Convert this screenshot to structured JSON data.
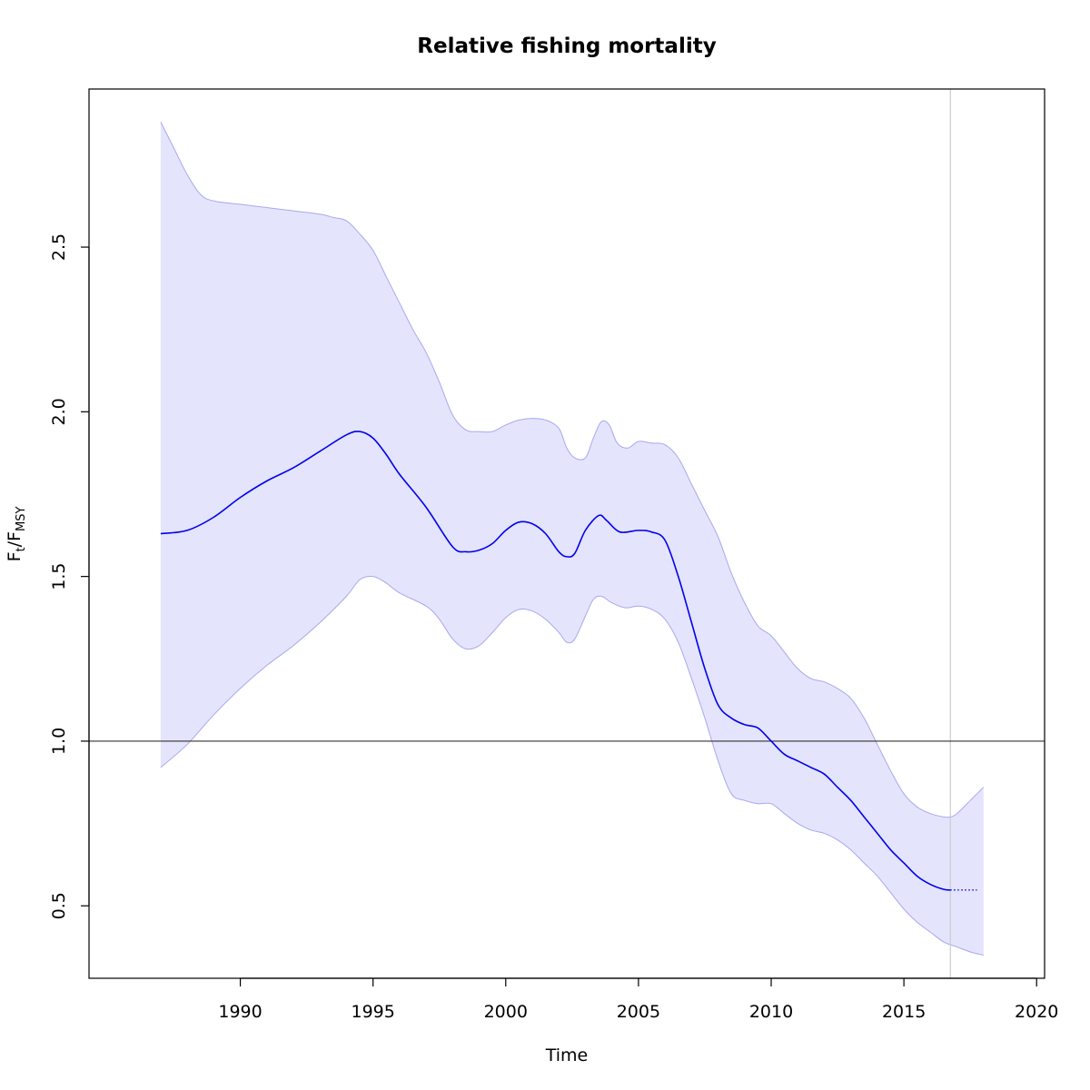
{
  "chart_data": {
    "type": "line",
    "title": "Relative fishing mortality",
    "xlabel": "Time",
    "ylabel": {
      "main": "F",
      "sub1": "t",
      "sep": "/F",
      "sub2": "MSY"
    },
    "xlim": [
      1984.3,
      2020.3
    ],
    "ylim": [
      0.28,
      2.98
    ],
    "xticks": [
      1990,
      1995,
      2000,
      2005,
      2010,
      2015,
      2020
    ],
    "xtick_labels": [
      "1990",
      "1995",
      "2000",
      "2005",
      "2010",
      "2015",
      "2020"
    ],
    "yticks": [
      0.5,
      1.0,
      1.5,
      2.0,
      2.5
    ],
    "ytick_labels": [
      "0.5",
      "1.0",
      "1.5",
      "2.0",
      "2.5"
    ],
    "reference_line_y": 1.0,
    "last_observation_x": 2016.75,
    "grid": false,
    "legend": "none",
    "colors": {
      "estimate": "#0000ee",
      "ci_fill": "#e4e4fc",
      "ci_border": "#a8a8f0",
      "reference": "#333333",
      "vline": "#cccccc"
    },
    "series": [
      {
        "role": "estimate",
        "x": [
          1987.0,
          1988.0,
          1989.0,
          1990.0,
          1991.0,
          1992.0,
          1993.0,
          1994.0,
          1994.5,
          1995.0,
          1995.5,
          1996.0,
          1997.0,
          1998.0,
          1998.5,
          1999.0,
          1999.5,
          2000.0,
          2000.5,
          2001.0,
          2001.5,
          2002.0,
          2002.3,
          2002.6,
          2003.0,
          2003.5,
          2003.8,
          2004.3,
          2005.0,
          2005.5,
          2006.0,
          2006.5,
          2007.0,
          2007.5,
          2008.0,
          2008.5,
          2009.0,
          2009.5,
          2010.0,
          2010.5,
          2011.0,
          2011.5,
          2012.0,
          2012.5,
          2013.0,
          2013.5,
          2014.0,
          2014.5,
          2015.0,
          2015.5,
          2016.0,
          2016.5,
          2016.75
        ],
        "y": [
          1.63,
          1.64,
          1.68,
          1.74,
          1.79,
          1.83,
          1.88,
          1.93,
          1.94,
          1.92,
          1.87,
          1.81,
          1.71,
          1.59,
          1.575,
          1.58,
          1.6,
          1.64,
          1.665,
          1.66,
          1.63,
          1.575,
          1.56,
          1.57,
          1.64,
          1.685,
          1.67,
          1.635,
          1.64,
          1.635,
          1.61,
          1.5,
          1.36,
          1.22,
          1.11,
          1.07,
          1.05,
          1.04,
          1.0,
          0.96,
          0.94,
          0.92,
          0.9,
          0.86,
          0.82,
          0.77,
          0.72,
          0.67,
          0.63,
          0.59,
          0.565,
          0.55,
          0.548
        ]
      },
      {
        "role": "forecast",
        "style": "dotted",
        "x": [
          2016.75,
          2017.25,
          2017.75
        ],
        "y": [
          0.548,
          0.548,
          0.548
        ]
      },
      {
        "role": "upper_ci",
        "x": [
          1987.0,
          1987.5,
          1988.0,
          1988.5,
          1989.0,
          1990.0,
          1991.0,
          1992.0,
          1993.0,
          1993.5,
          1994.0,
          1994.5,
          1995.0,
          1995.5,
          1996.0,
          1996.5,
          1997.0,
          1997.5,
          1998.0,
          1998.5,
          1999.0,
          1999.5,
          2000.0,
          2000.5,
          2001.0,
          2001.5,
          2002.0,
          2002.3,
          2002.6,
          2003.0,
          2003.3,
          2003.6,
          2003.9,
          2004.2,
          2004.6,
          2005.0,
          2005.5,
          2006.0,
          2006.5,
          2007.0,
          2007.5,
          2008.0,
          2008.5,
          2009.0,
          2009.5,
          2010.0,
          2010.5,
          2011.0,
          2011.5,
          2012.0,
          2012.5,
          2013.0,
          2013.5,
          2014.0,
          2014.5,
          2015.0,
          2015.5,
          2016.0,
          2016.5,
          2016.75,
          2017.0,
          2017.5,
          2018.0
        ],
        "y": [
          2.88,
          2.8,
          2.72,
          2.66,
          2.64,
          2.63,
          2.62,
          2.61,
          2.6,
          2.59,
          2.58,
          2.54,
          2.49,
          2.41,
          2.33,
          2.25,
          2.18,
          2.09,
          1.99,
          1.945,
          1.94,
          1.94,
          1.96,
          1.975,
          1.98,
          1.975,
          1.95,
          1.89,
          1.86,
          1.86,
          1.92,
          1.97,
          1.96,
          1.905,
          1.89,
          1.91,
          1.905,
          1.9,
          1.86,
          1.78,
          1.7,
          1.62,
          1.51,
          1.42,
          1.35,
          1.32,
          1.27,
          1.22,
          1.19,
          1.18,
          1.16,
          1.13,
          1.07,
          0.99,
          0.91,
          0.84,
          0.8,
          0.78,
          0.77,
          0.77,
          0.78,
          0.82,
          0.86
        ]
      },
      {
        "role": "lower_ci",
        "x": [
          1987.0,
          1988.0,
          1989.0,
          1990.0,
          1991.0,
          1992.0,
          1993.0,
          1994.0,
          1994.5,
          1995.0,
          1995.5,
          1996.0,
          1997.0,
          1997.5,
          1998.0,
          1998.5,
          1999.0,
          1999.5,
          2000.0,
          2000.5,
          2001.0,
          2001.5,
          2002.0,
          2002.3,
          2002.6,
          2003.0,
          2003.3,
          2003.6,
          2004.0,
          2004.5,
          2005.0,
          2005.5,
          2006.0,
          2006.5,
          2007.0,
          2007.5,
          2008.0,
          2008.5,
          2009.0,
          2009.5,
          2010.0,
          2010.5,
          2011.0,
          2011.5,
          2012.0,
          2012.5,
          2013.0,
          2013.5,
          2014.0,
          2014.5,
          2015.0,
          2015.5,
          2016.0,
          2016.5,
          2017.0,
          2017.5,
          2018.0
        ],
        "y": [
          0.92,
          0.99,
          1.08,
          1.16,
          1.23,
          1.29,
          1.36,
          1.44,
          1.49,
          1.5,
          1.48,
          1.45,
          1.41,
          1.37,
          1.31,
          1.28,
          1.29,
          1.33,
          1.375,
          1.4,
          1.395,
          1.37,
          1.33,
          1.3,
          1.31,
          1.38,
          1.43,
          1.44,
          1.42,
          1.405,
          1.41,
          1.4,
          1.37,
          1.3,
          1.19,
          1.07,
          0.94,
          0.84,
          0.82,
          0.81,
          0.81,
          0.78,
          0.75,
          0.73,
          0.72,
          0.7,
          0.67,
          0.63,
          0.59,
          0.54,
          0.49,
          0.45,
          0.42,
          0.39,
          0.375,
          0.36,
          0.35
        ]
      }
    ]
  }
}
